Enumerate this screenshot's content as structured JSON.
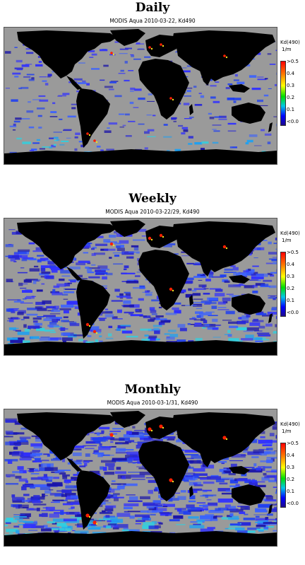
{
  "panels": [
    {
      "title": "Daily",
      "subtitle": "MODIS Aqua 2010-03-22, Kd490",
      "legend": {
        "title": "Kd(490)",
        "unit": "1/m",
        "ticks": [
          ">0.5",
          "0.4",
          "0.3",
          "0.2",
          "0.1",
          "<0.0"
        ]
      },
      "coverage": 0.25
    },
    {
      "title": "Weekly",
      "subtitle": "MODIS Aqua 2010-03-22/29, Kd490",
      "legend": {
        "title": "Kd(490)",
        "unit": "1/m",
        "ticks": [
          ">0.5",
          "0.4",
          "0.3",
          "0.2",
          "0.1",
          "<0.0"
        ]
      },
      "coverage": 0.7
    },
    {
      "title": "Monthly",
      "subtitle": "MODIS Aqua 2010-03-1/31, Kd490",
      "legend": {
        "title": "Kd(490)",
        "unit": "1/m",
        "ticks": [
          ">0.5",
          "0.4",
          "0.3",
          "0.2",
          "0.1",
          "<0.0"
        ]
      },
      "coverage": 0.95
    }
  ],
  "colors": {
    "land": "#000000",
    "no_data": "#9a9a9a",
    "low": "#2020c8",
    "mid": "#20c8e0",
    "high": "#ff2000"
  }
}
